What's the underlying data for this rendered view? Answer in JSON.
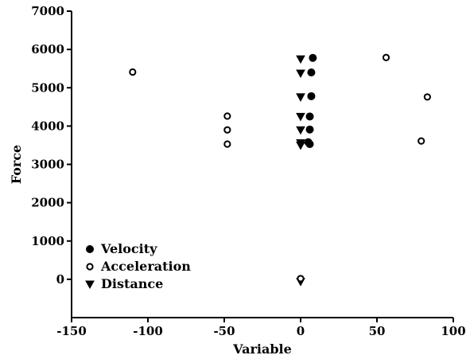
{
  "chart_data": {
    "type": "scatter",
    "title": "",
    "xlabel": "Variable",
    "ylabel": "Force",
    "xlim": [
      -150,
      100
    ],
    "ylim": [
      -1000,
      7000
    ],
    "x_ticks": [
      -150,
      -100,
      -50,
      0,
      50,
      100
    ],
    "y_ticks": [
      0,
      1000,
      2000,
      3000,
      4000,
      5000,
      6000,
      7000
    ],
    "grid": false,
    "legend_position": "bottom-left",
    "series": [
      {
        "name": "Velocity",
        "marker": "filled-circle",
        "points": [
          {
            "x": 8,
            "y": 5780
          },
          {
            "x": 7,
            "y": 5400
          },
          {
            "x": 7,
            "y": 4780
          },
          {
            "x": 6,
            "y": 4250
          },
          {
            "x": 6,
            "y": 3910
          },
          {
            "x": 5,
            "y": 3580
          },
          {
            "x": 6,
            "y": 3530
          }
        ]
      },
      {
        "name": "Acceleration",
        "marker": "open-circle",
        "points": [
          {
            "x": -110,
            "y": 5410
          },
          {
            "x": 56,
            "y": 5790
          },
          {
            "x": 83,
            "y": 4760
          },
          {
            "x": -48,
            "y": 4260
          },
          {
            "x": -48,
            "y": 3900
          },
          {
            "x": -48,
            "y": 3530
          },
          {
            "x": 79,
            "y": 3610
          },
          {
            "x": 0,
            "y": 20
          }
        ]
      },
      {
        "name": "Distance",
        "marker": "filled-triangle-down",
        "points": [
          {
            "x": 0,
            "y": 5750
          },
          {
            "x": 0,
            "y": 5380
          },
          {
            "x": 0,
            "y": 4760
          },
          {
            "x": 0,
            "y": 4250
          },
          {
            "x": 0,
            "y": 3900
          },
          {
            "x": 0,
            "y": 3560
          },
          {
            "x": 0,
            "y": 3500
          },
          {
            "x": 0,
            "y": -60
          }
        ]
      }
    ]
  }
}
